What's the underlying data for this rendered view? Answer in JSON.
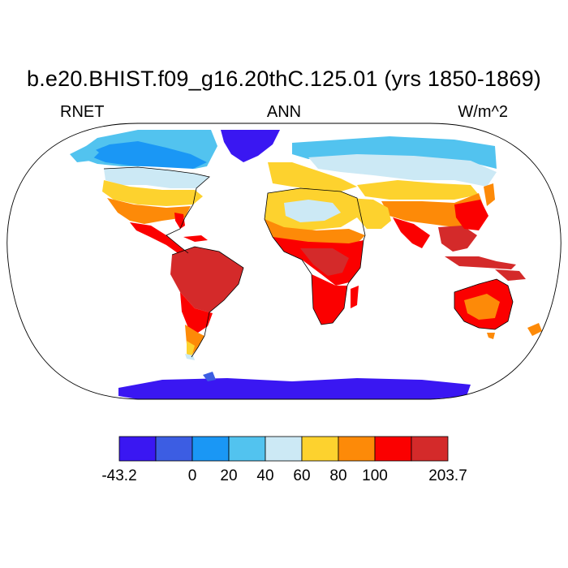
{
  "title": "b.e20.BHIST.f09_g16.20thC.125.01 (yrs 1850-1869)",
  "left_label": "RNET",
  "center_label": "ANN",
  "right_label": "W/m^2",
  "colorbar": {
    "colors": [
      "#3a17f2",
      "#3c5de3",
      "#1a97f5",
      "#52c3ef",
      "#cce9f5",
      "#fdd22e",
      "#fd8a08",
      "#fb0000",
      "#d42a2a"
    ],
    "labels": [
      "-43.2",
      "0",
      "20",
      "40",
      "60",
      "80",
      "100",
      "203.7"
    ]
  },
  "map_colors": {
    "ocean": "#ffffff",
    "coast": "#000000",
    "cold": "#3a17f2",
    "cool": "#3c5de3",
    "mid_blue": "#1a97f5",
    "light_blue": "#52c3ef",
    "pale": "#cce9f5",
    "yellow": "#fdd22e",
    "orange": "#fd8a08",
    "red": "#fb0000",
    "dark_red": "#d42a2a"
  }
}
